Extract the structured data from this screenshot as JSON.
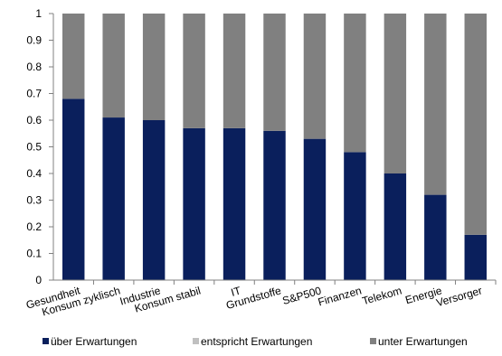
{
  "chart_data": {
    "type": "bar",
    "stacked": true,
    "categories": [
      "Gesundheit",
      "Konsum zyklisch",
      "Industrie",
      "Konsum stabil",
      "IT",
      "Grundstoffe",
      "S&P500",
      "Finanzen",
      "Telekom",
      "Energie",
      "Versorger"
    ],
    "series": [
      {
        "name": "über Erwartungen",
        "color": "#0a1f5c",
        "values": [
          0.68,
          0.61,
          0.6,
          0.57,
          0.57,
          0.56,
          0.53,
          0.48,
          0.4,
          0.32,
          0.17
        ]
      },
      {
        "name": "entspricht Erwartungen",
        "color": "#c0c0c0",
        "values": [
          0,
          0,
          0,
          0,
          0,
          0,
          0,
          0,
          0,
          0,
          0
        ]
      },
      {
        "name": "unter Erwartungen",
        "color": "#808080",
        "values": [
          0.32,
          0.39,
          0.4,
          0.43,
          0.43,
          0.44,
          0.47,
          0.52,
          0.6,
          0.68,
          0.83
        ]
      }
    ],
    "ylim": [
      0,
      1
    ],
    "yticks": [
      "0",
      "0.1",
      "0.2",
      "0.3",
      "0.4",
      "0.5",
      "0.6",
      "0.7",
      "0.8",
      "0.9",
      "1"
    ],
    "grid": false,
    "legend_position": "bottom"
  }
}
